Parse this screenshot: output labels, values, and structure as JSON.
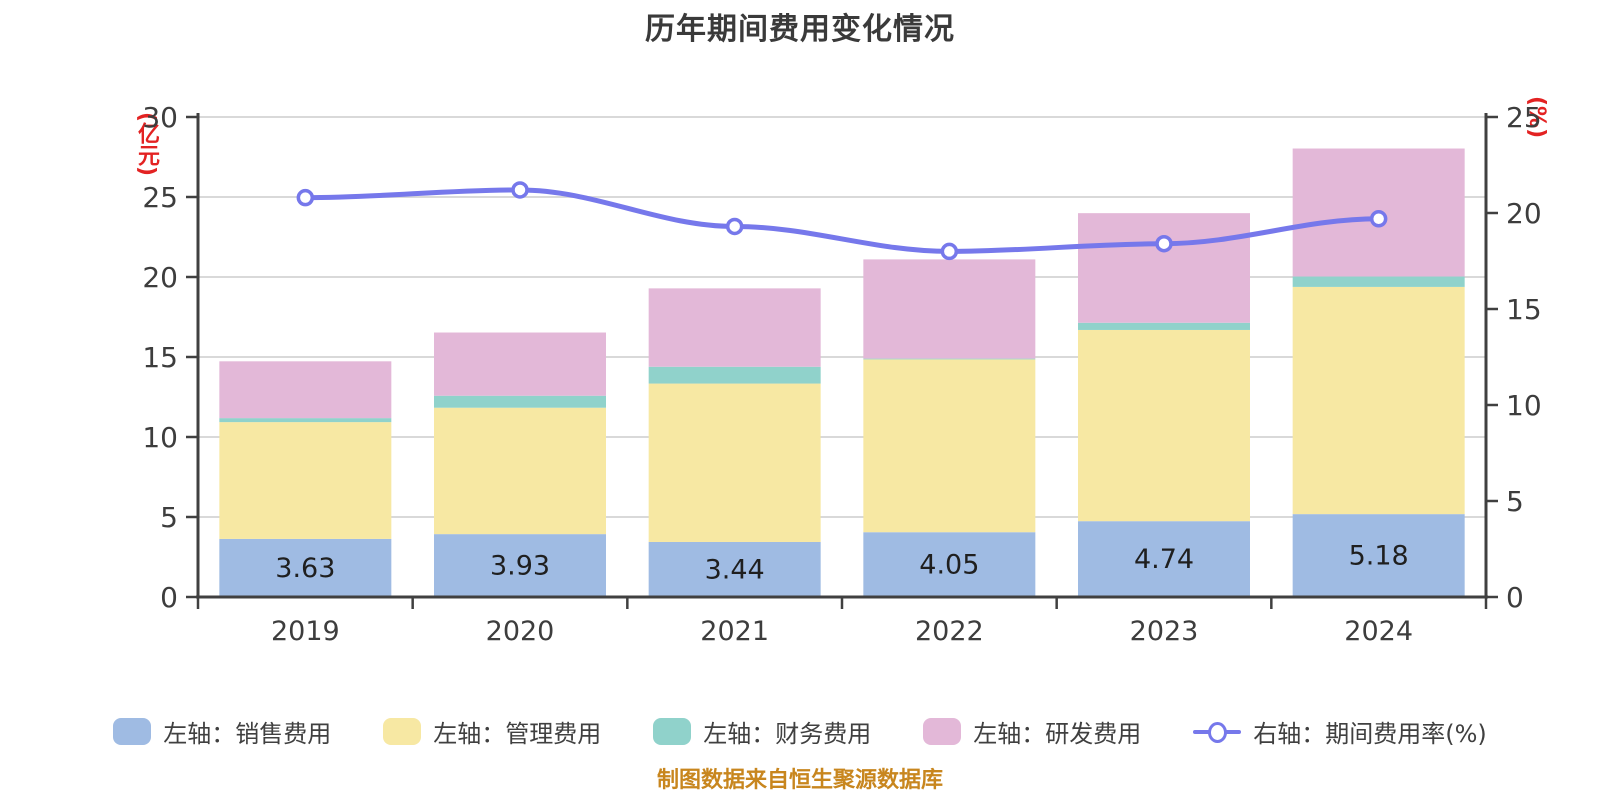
{
  "title": "历年期间费用变化情况",
  "footer": "制图数据来自恒生聚源数据库",
  "colors": {
    "sales": "#9FBBE3",
    "management": "#F7E8A3",
    "finance": "#90D2CB",
    "rnd": "#E3B8D8",
    "line": "#7678EB",
    "marker_fill": "#FFFFFF",
    "axis": "#404040",
    "tick_text": "#3D3D3D",
    "grid": "#D9D9D9",
    "bar_label": "#1F1F1F",
    "unit_red": "#E32222",
    "footer_orange": "#C8861E"
  },
  "left_axis": {
    "name": "(亿元)",
    "ticks": [
      0,
      5,
      10,
      15,
      20,
      25,
      30
    ],
    "max": 30
  },
  "right_axis": {
    "name": "(%)",
    "ticks": [
      0,
      5,
      10,
      15,
      20,
      25
    ],
    "max": 25
  },
  "legend": [
    {
      "label": "左轴：销售费用",
      "type": "bar",
      "color": "#9FBBE3"
    },
    {
      "label": "左轴：管理费用",
      "type": "bar",
      "color": "#F7E8A3"
    },
    {
      "label": "左轴：财务费用",
      "type": "bar",
      "color": "#90D2CB"
    },
    {
      "label": "左轴：研发费用",
      "type": "bar",
      "color": "#E3B8D8"
    },
    {
      "label": "右轴：期间费用率(%)",
      "type": "line",
      "color": "#7678EB"
    }
  ],
  "chart_data": {
    "type": "bar",
    "subtype": "stacked-bars-with-line",
    "categories": [
      "2019",
      "2020",
      "2021",
      "2022",
      "2023",
      "2024"
    ],
    "series": [
      {
        "name": "左轴：销售费用",
        "key": "sales",
        "type": "bar",
        "axis": "left",
        "color": "#9FBBE3",
        "values": [
          3.63,
          3.93,
          3.44,
          4.05,
          4.74,
          5.18
        ],
        "show_labels": true
      },
      {
        "name": "左轴：管理费用",
        "key": "management",
        "type": "bar",
        "axis": "left",
        "color": "#F7E8A3",
        "values": [
          7.3,
          7.9,
          9.9,
          10.8,
          11.95,
          14.2
        ],
        "show_labels": false
      },
      {
        "name": "左轴：财务费用",
        "key": "finance",
        "type": "bar",
        "axis": "left",
        "color": "#90D2CB",
        "values": [
          0.25,
          0.75,
          1.05,
          0.05,
          0.45,
          0.65
        ],
        "show_labels": false
      },
      {
        "name": "左轴：研发费用",
        "key": "rnd",
        "type": "bar",
        "axis": "left",
        "color": "#E3B8D8",
        "values": [
          3.55,
          3.95,
          4.9,
          6.2,
          6.85,
          8.0
        ],
        "show_labels": false
      },
      {
        "name": "右轴：期间费用率(%)",
        "key": "rate",
        "type": "line",
        "axis": "right",
        "color": "#7678EB",
        "values": [
          20.8,
          21.2,
          19.3,
          18.0,
          18.4,
          19.7
        ],
        "show_labels": false
      }
    ],
    "bar_value_labels": [
      "3.63",
      "3.93",
      "3.44",
      "4.05",
      "4.74",
      "5.18"
    ],
    "ylim_left": [
      0,
      30
    ],
    "ylim_right": [
      0,
      25
    ],
    "grid": true,
    "legend_position": "bottom"
  }
}
